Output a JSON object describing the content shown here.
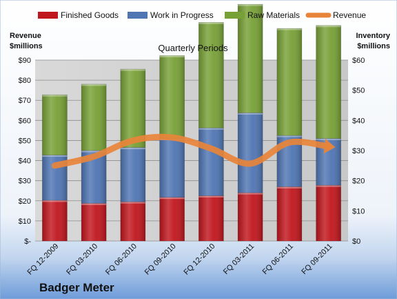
{
  "chart_data": {
    "type": "bar",
    "title": "Quarterly Periods",
    "company": "Badger Meter",
    "categories": [
      "FQ 12-2009",
      "FQ 03-2010",
      "FQ 06-2010",
      "FQ 09-2010",
      "FQ 12-2010",
      "FQ 03-2011",
      "FQ 06-2011",
      "FQ 09-2011"
    ],
    "stacked_series": [
      {
        "name": "Finished Goods",
        "color": "#C0161D",
        "values": [
          13.5,
          12.5,
          13,
          14.5,
          15,
          16,
          18,
          18.5
        ]
      },
      {
        "name": "Work in Progress",
        "color": "#4F75B3",
        "values": [
          15,
          17.5,
          18,
          19.5,
          22.5,
          26.5,
          17,
          15.5
        ]
      },
      {
        "name": "Raw Materials",
        "color": "#77A036",
        "values": [
          20,
          22,
          26,
          27.5,
          35,
          36,
          35.5,
          37.5
        ]
      }
    ],
    "line_series": {
      "name": "Revenue",
      "color": "#E8843A",
      "axis": "left",
      "values": [
        37.5,
        42,
        50,
        51.5,
        46,
        38.5,
        49,
        47
      ]
    },
    "y_left": {
      "label_line1": "Revenue",
      "label_line2": "$millions",
      "range": [
        0,
        90
      ],
      "ticks": [
        {
          "v": 0,
          "label": "$-"
        },
        {
          "v": 10,
          "label": "$10"
        },
        {
          "v": 20,
          "label": "$20"
        },
        {
          "v": 30,
          "label": "$30"
        },
        {
          "v": 40,
          "label": "$40"
        },
        {
          "v": 50,
          "label": "$50"
        },
        {
          "v": 60,
          "label": "$60"
        },
        {
          "v": 70,
          "label": "$70"
        },
        {
          "v": 80,
          "label": "$80"
        },
        {
          "v": 90,
          "label": "$90"
        }
      ]
    },
    "y_right": {
      "label_line1": "Inventory",
      "label_line2": "$millions",
      "range": [
        0,
        60
      ],
      "ticks": [
        {
          "v": 0,
          "label": "$0"
        },
        {
          "v": 10,
          "label": "$10"
        },
        {
          "v": 20,
          "label": "$20"
        },
        {
          "v": 30,
          "label": "$30"
        },
        {
          "v": 40,
          "label": "$40"
        },
        {
          "v": 50,
          "label": "$50"
        },
        {
          "v": 60,
          "label": "$60"
        }
      ]
    },
    "legend_position": "top",
    "grid": true
  }
}
